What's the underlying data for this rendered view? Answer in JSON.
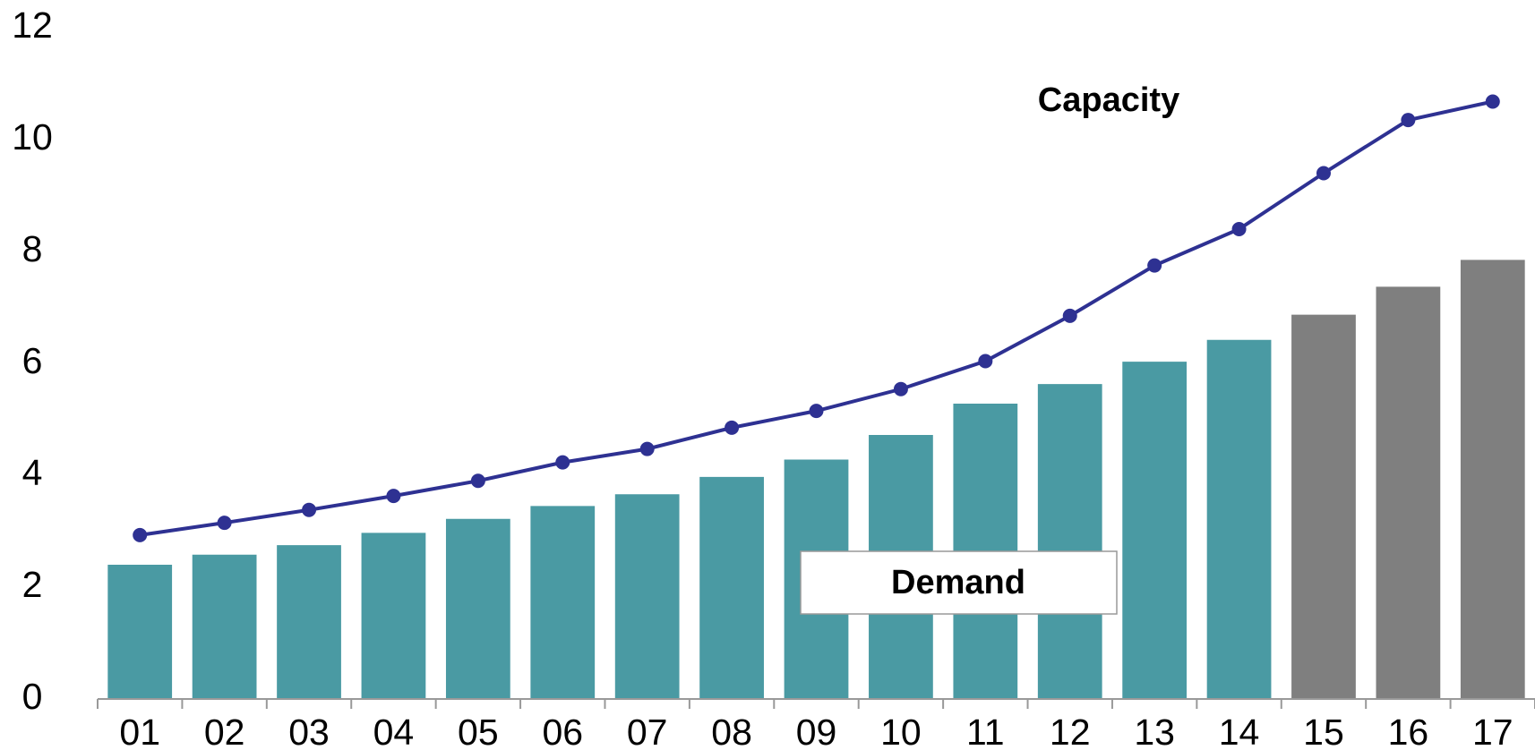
{
  "chart_data": {
    "type": "bar_line",
    "categories": [
      "01",
      "02",
      "03",
      "04",
      "05",
      "06",
      "07",
      "08",
      "09",
      "10",
      "11",
      "12",
      "13",
      "14",
      "15",
      "16",
      "17"
    ],
    "series": [
      {
        "name": "Demand",
        "type": "bar",
        "colors": [
          "#4a9aa3",
          "#4a9aa3",
          "#4a9aa3",
          "#4a9aa3",
          "#4a9aa3",
          "#4a9aa3",
          "#4a9aa3",
          "#4a9aa3",
          "#4a9aa3",
          "#4a9aa3",
          "#4a9aa3",
          "#4a9aa3",
          "#4a9aa3",
          "#4a9aa3",
          "#7f7f7f",
          "#7f7f7f",
          "#7f7f7f"
        ],
        "values": [
          2.4,
          2.58,
          2.75,
          2.97,
          3.22,
          3.45,
          3.66,
          3.97,
          4.28,
          4.72,
          5.28,
          5.63,
          6.03,
          6.42,
          6.87,
          7.37,
          7.85
        ]
      },
      {
        "name": "Capacity",
        "type": "line",
        "color": "#2e3192",
        "values": [
          2.93,
          3.15,
          3.38,
          3.63,
          3.9,
          4.23,
          4.47,
          4.85,
          5.15,
          5.54,
          6.04,
          6.85,
          7.75,
          8.4,
          9.4,
          10.35,
          10.68
        ]
      }
    ],
    "ylim": [
      0,
      12
    ],
    "yticks": [
      0,
      2,
      4,
      6,
      8,
      10,
      12
    ],
    "grid": false
  }
}
